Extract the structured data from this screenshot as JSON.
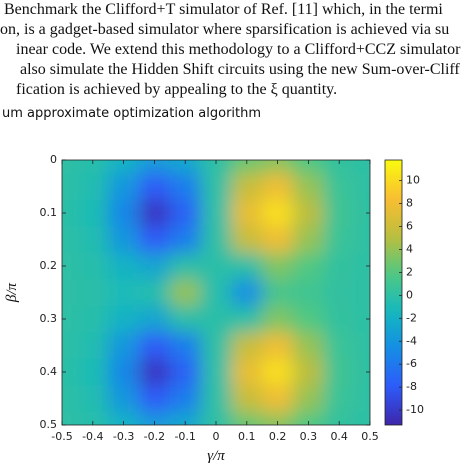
{
  "text_lines": [
    "Benchmark the Clifford+T simulator of Ref. [11] which, in the termi",
    "on, is a gadget-based simulator where sparsification is achieved via su",
    "inear code. We extend this methodology to a Clifford+CCZ simulator",
    "also simulate the Hidden Shift circuits using the new Sum-over-Cliff",
    "fication is achieved by appealing to the ξ quantity."
  ],
  "heading": "um approximate optimization algorithm",
  "chart_data": {
    "type": "heatmap",
    "xlabel": "γ/π",
    "ylabel": "β/π",
    "x": [
      -0.5,
      -0.4,
      -0.3,
      -0.2,
      -0.1,
      0,
      0.1,
      0.2,
      0.3,
      0.4,
      0.5
    ],
    "y": [
      0,
      0.05,
      0.1,
      0.15,
      0.2,
      0.25,
      0.3,
      0.35,
      0.4,
      0.45,
      0.5
    ],
    "z": [
      [
        0,
        -0.3,
        -1.9,
        -3.7,
        -2.7,
        0,
        2.7,
        3.7,
        1.9,
        0.3,
        0
      ],
      [
        0,
        -0.7,
        -4,
        -7.9,
        -5.7,
        0,
        5.7,
        7.9,
        4,
        0.7,
        0
      ],
      [
        -0.1,
        -0.9,
        -5.1,
        -10.3,
        -7.5,
        0,
        7.5,
        10.3,
        5.1,
        0.9,
        0.1
      ],
      [
        0,
        -0.7,
        -4,
        -7.9,
        -5.7,
        0,
        5.7,
        7.9,
        4,
        0.7,
        0
      ],
      [
        0,
        -0.3,
        -1.9,
        -2.9,
        -0.2,
        -0.2,
        -0.1,
        3.3,
        1.9,
        0.3,
        0
      ],
      [
        0,
        -0.2,
        -1,
        -0.4,
        4,
        -0.4,
        -4.5,
        1.3,
        1,
        0.2,
        0
      ],
      [
        0,
        -0.3,
        -1.9,
        -2.9,
        -0.2,
        -0.2,
        -0.1,
        3.3,
        1.9,
        0.3,
        0
      ],
      [
        0,
        -0.7,
        -4,
        -7.9,
        -5.7,
        0,
        5.7,
        7.9,
        4,
        0.7,
        0
      ],
      [
        -0.1,
        -0.9,
        -5.1,
        -10.3,
        -7.5,
        0,
        7.5,
        10.3,
        5.1,
        0.9,
        0.1
      ],
      [
        0,
        -0.7,
        -4,
        -7.9,
        -5.7,
        0,
        5.7,
        7.9,
        4,
        0.7,
        0
      ],
      [
        0,
        -0.3,
        -1.9,
        -3.7,
        -2.7,
        0,
        2.7,
        3.7,
        1.9,
        0.3,
        0
      ]
    ],
    "xlim": [
      -0.5,
      0.5
    ],
    "ylim": [
      0,
      0.5
    ],
    "y_inverted": true,
    "xticks": [
      -0.5,
      -0.4,
      -0.3,
      -0.2,
      -0.1,
      0,
      0.1,
      0.2,
      0.3,
      0.4,
      0.5
    ],
    "yticks": [
      0,
      0.1,
      0.2,
      0.3,
      0.4,
      0.5
    ],
    "clim": [
      -11.3,
      11.8
    ],
    "cticks": [
      -10,
      -8,
      -6,
      -4,
      -2,
      0,
      2,
      4,
      6,
      8,
      10
    ],
    "colormap": [
      "#3e26a8",
      "#2e5afa",
      "#148ce6",
      "#14b9be",
      "#50c882",
      "#bebe3c",
      "#fabe32",
      "#f9fb0e"
    ]
  }
}
